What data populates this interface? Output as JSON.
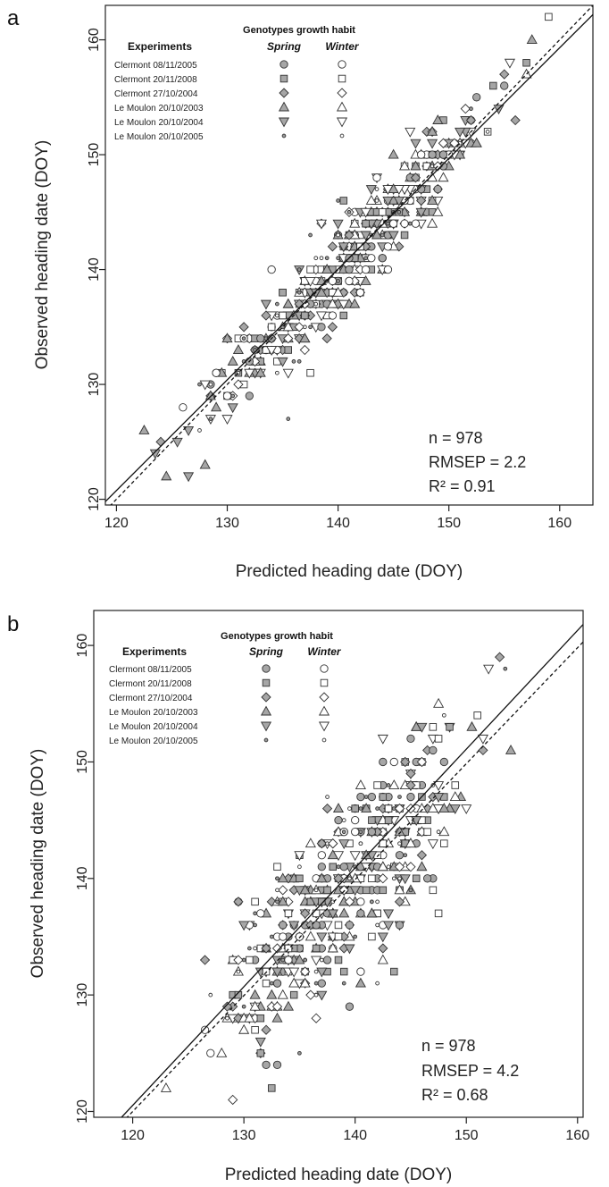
{
  "chart_data": [
    {
      "type": "scatter",
      "panel": "a",
      "xlabel": "Predicted heading date (DOY)",
      "ylabel": "Observed heading date (DOY)",
      "xlim": [
        119,
        163
      ],
      "ylim": [
        119.5,
        163
      ],
      "xticks": [
        "120",
        "130",
        "140",
        "150",
        "160"
      ],
      "yticks": [
        "120",
        "130",
        "140",
        "150",
        "160"
      ],
      "legend": {
        "title": "Genotypes growth habit",
        "header": "Experiments",
        "columns": [
          "Spring",
          "Winter"
        ],
        "entries": [
          {
            "label": "Clermont 08/11/2005",
            "marker": "circle"
          },
          {
            "label": "Clermont 20/11/2008",
            "marker": "square"
          },
          {
            "label": "Clermont 27/10/2004",
            "marker": "diamond"
          },
          {
            "label": "Le Moulon 20/10/2003",
            "marker": "triangle-up"
          },
          {
            "label": "Le Moulon 20/10/2004",
            "marker": "triangle-down"
          },
          {
            "label": "Le Moulon 20/10/2005",
            "marker": "dot"
          }
        ]
      },
      "stats": {
        "n": "n = 978",
        "rmsep": "RMSEP = 2.2",
        "r2": "R² = 0.91"
      },
      "reference_lines": [
        {
          "style": "solid",
          "x": [
            119,
            163
          ],
          "y": [
            119.8,
            162.2
          ]
        },
        {
          "style": "dashed",
          "x": [
            119,
            163
          ],
          "y": [
            119,
            163
          ]
        }
      ],
      "spread": 2.2,
      "x_range": [
        121,
        161
      ],
      "n_points": 978
    },
    {
      "type": "scatter",
      "panel": "b",
      "xlabel": "Predicted heading date (DOY)",
      "ylabel": "Observed heading date (DOY)",
      "xlim": [
        116.5,
        160.5
      ],
      "ylim": [
        119.5,
        163
      ],
      "xticks": [
        "120",
        "130",
        "140",
        "150",
        "160"
      ],
      "yticks": [
        "120",
        "130",
        "140",
        "150",
        "160"
      ],
      "legend": {
        "title": "Genotypes growth habit",
        "header": "Experiments",
        "columns": [
          "Spring",
          "Winter"
        ],
        "entries": [
          {
            "label": "Clermont 08/11/2005",
            "marker": "circle"
          },
          {
            "label": "Clermont 20/11/2008",
            "marker": "square"
          },
          {
            "label": "Clermont 27/10/2004",
            "marker": "diamond"
          },
          {
            "label": "Le Moulon 20/10/2003",
            "marker": "triangle-up"
          },
          {
            "label": "Le Moulon 20/10/2004",
            "marker": "triangle-down"
          },
          {
            "label": "Le Moulon 20/10/2005",
            "marker": "dot"
          }
        ]
      },
      "stats": {
        "n": "n = 978",
        "rmsep": "RMSEP = 4.2",
        "r2": "R² = 0.68"
      },
      "reference_lines": [
        {
          "style": "solid",
          "x": [
            119,
            160.5
          ],
          "y": [
            119.5,
            161.8
          ]
        },
        {
          "style": "dashed",
          "x": [
            119,
            160.5
          ],
          "y": [
            119,
            160.3
          ]
        }
      ],
      "spread": 4.2,
      "x_range": [
        122,
        155
      ],
      "n_points": 978
    }
  ]
}
